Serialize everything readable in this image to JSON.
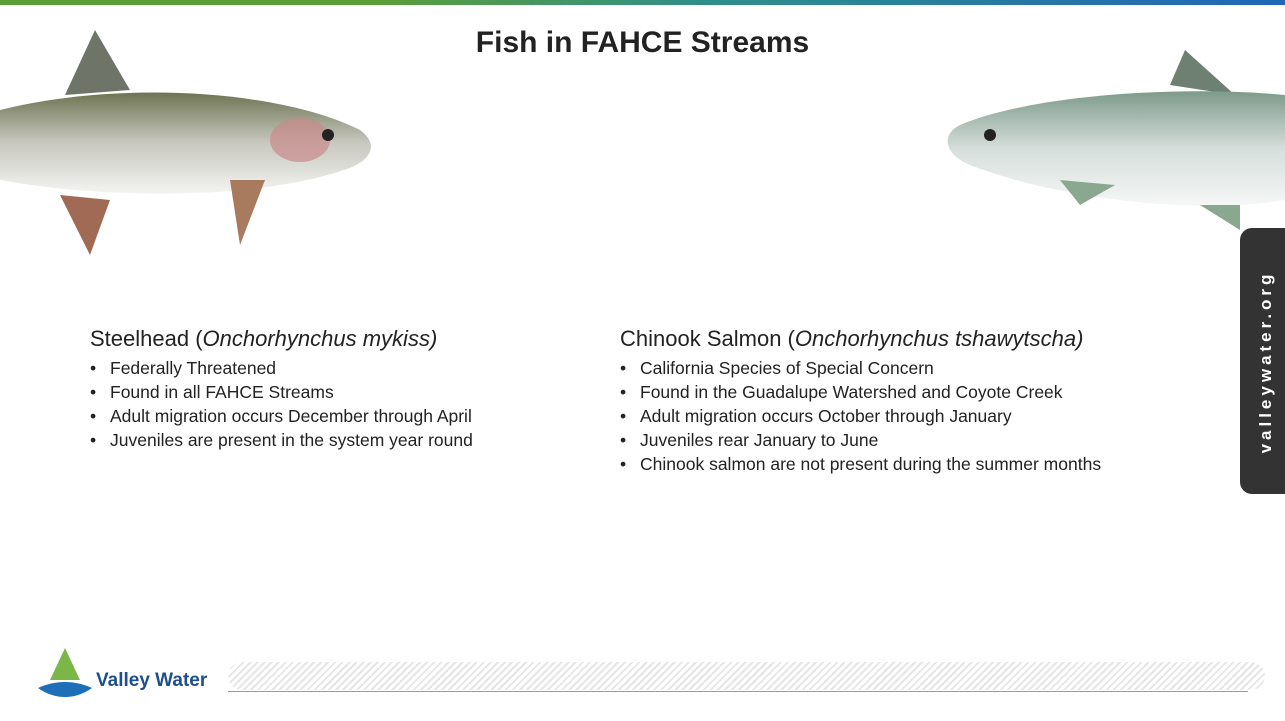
{
  "header": {
    "title": "Fish in FAHCE Streams"
  },
  "species": [
    {
      "common_name": "Steelhead (",
      "scientific_name": "Onchorhynchus mykiss)",
      "facts": [
        "Federally Threatened",
        "Found in all FAHCE Streams",
        "Adult migration occurs December through April",
        "Juveniles are present in the system year round"
      ]
    },
    {
      "common_name": "Chinook Salmon (",
      "scientific_name": "Onchorhynchus tshawytscha)",
      "facts": [
        "California Species of Special Concern",
        "Found in the Guadalupe Watershed and Coyote Creek",
        "Adult migration occurs October through January",
        "Juveniles rear January to June",
        "Chinook salmon are not present during the summer months"
      ]
    }
  ],
  "side_tab": "valleywater.org",
  "footer": {
    "logo_text": "Valley Water"
  }
}
